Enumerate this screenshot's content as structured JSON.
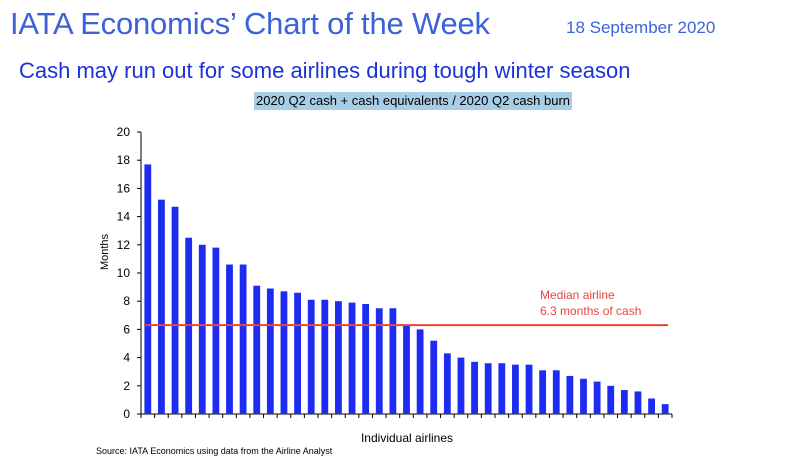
{
  "header": {
    "title": "IATA Economics’ Chart of the Week",
    "date": "18 September 2020"
  },
  "headline": "Cash may run out for some airlines during tough winter season",
  "subtitle": "2020 Q2 cash + cash equivalents / 2020 Q2 cash burn",
  "source": "Source: IATA Economics using data from the Airline Analyst",
  "colors": {
    "bar": "#1d2cf0",
    "median_line": "#e8453c",
    "title": "#3b62d6",
    "headline": "#1a33d6",
    "subtitle_bg": "#a8cde6"
  },
  "chart_data": {
    "type": "bar",
    "title": "2020 Q2 cash + cash equivalents / 2020 Q2 cash burn",
    "xlabel": "Individual airlines",
    "ylabel": "Months",
    "ylim": [
      0,
      20
    ],
    "yticks": [
      0,
      2,
      4,
      6,
      8,
      10,
      12,
      14,
      16,
      18,
      20
    ],
    "values": [
      17.7,
      15.2,
      14.7,
      12.5,
      12.0,
      11.8,
      10.6,
      10.6,
      9.1,
      8.9,
      8.7,
      8.6,
      8.1,
      8.1,
      8.0,
      7.9,
      7.8,
      7.5,
      7.5,
      6.3,
      6.0,
      5.2,
      4.3,
      4.0,
      3.7,
      3.6,
      3.6,
      3.5,
      3.5,
      3.1,
      3.1,
      2.7,
      2.5,
      2.3,
      2.0,
      1.7,
      1.6,
      1.1,
      0.7
    ],
    "median": {
      "value": 6.3,
      "label_line1": "Median airline",
      "label_line2": "6.3 months of cash"
    }
  }
}
